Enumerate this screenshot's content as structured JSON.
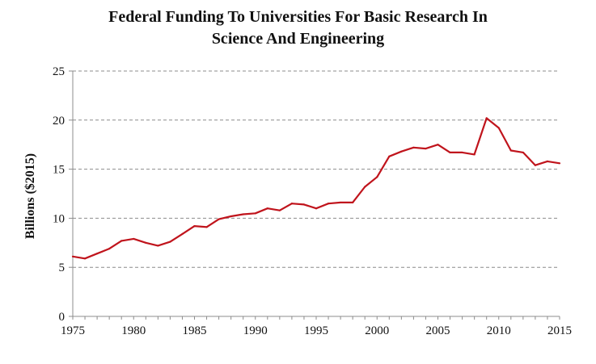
{
  "chart_data": {
    "type": "line",
    "title_lines": [
      "Federal Funding To Universities For Basic Research In",
      "Science And Engineering"
    ],
    "xlabel": "",
    "ylabel": "Billions ($2015)",
    "xlim": [
      1975,
      2015
    ],
    "ylim": [
      0,
      25
    ],
    "x_ticks": [
      "1975",
      "1980",
      "1985",
      "1990",
      "1995",
      "2000",
      "2005",
      "2010",
      "2015"
    ],
    "y_ticks": [
      "0",
      "5",
      "10",
      "15",
      "20",
      "25"
    ],
    "grid": "horizontal-dashed",
    "legend": "none",
    "line_color": "#c0141c",
    "series": [
      {
        "x": [
          1975,
          1976,
          1977,
          1978,
          1979,
          1980,
          1981,
          1982,
          1983,
          1984,
          1985,
          1986,
          1987,
          1988,
          1989,
          1990,
          1991,
          1992,
          1993,
          1994,
          1995,
          1996,
          1997,
          1998,
          1999,
          2000,
          2001,
          2002,
          2003,
          2004,
          2005,
          2006,
          2007,
          2008,
          2009,
          2010,
          2011,
          2012,
          2013,
          2014,
          2015
        ],
        "values": [
          6.1,
          5.9,
          6.4,
          6.9,
          7.7,
          7.9,
          7.5,
          7.2,
          7.6,
          8.4,
          9.2,
          9.1,
          9.9,
          10.2,
          10.4,
          10.5,
          11.0,
          10.8,
          11.5,
          11.4,
          11.0,
          11.5,
          11.6,
          11.6,
          13.2,
          14.2,
          16.3,
          16.8,
          17.2,
          17.1,
          17.5,
          16.7,
          16.7,
          16.5,
          20.2,
          19.2,
          16.9,
          16.7,
          15.4,
          15.8,
          15.6
        ]
      }
    ]
  }
}
